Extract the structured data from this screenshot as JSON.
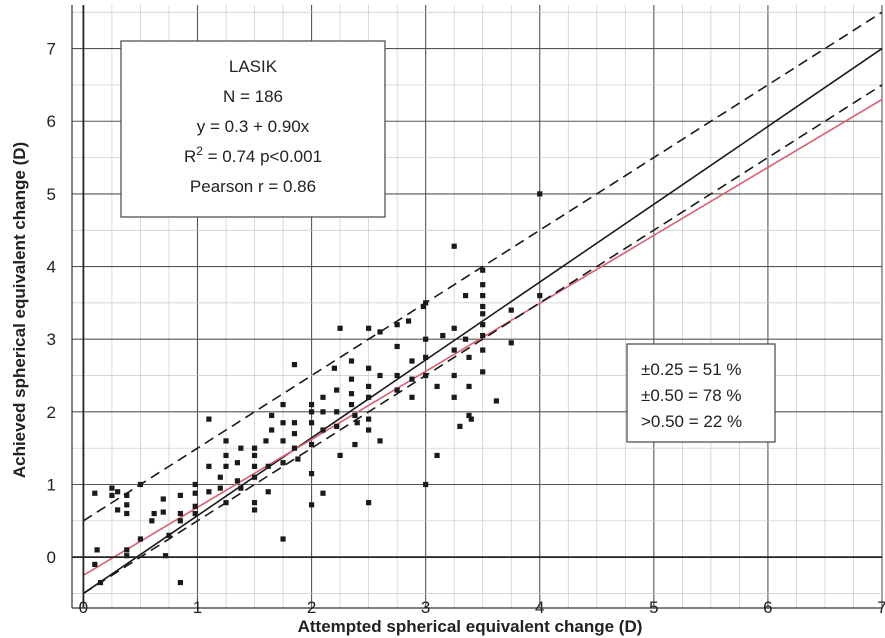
{
  "chart_data": {
    "type": "scatter",
    "xlabel": "Attempted spherical equivalent change (D)",
    "ylabel": "Achieved spherical equivalent change (D)",
    "xlim": [
      -0.1,
      7
    ],
    "ylim": [
      -0.7,
      7.6
    ],
    "x_ticks": [
      "0",
      "1",
      "2",
      "3",
      "4",
      "5",
      "6",
      "7"
    ],
    "y_ticks": [
      "0",
      "1",
      "2",
      "3",
      "4",
      "5",
      "6",
      "7"
    ],
    "grid": true,
    "stats_box": {
      "title": "LASIK",
      "n": "N = 186",
      "equation": "y = 0.3 + 0.90x",
      "r2_prefix": "R",
      "r2_sup": "2",
      "r2_suffix": " = 0.74 p<0.001",
      "pearson": "Pearson r = 0.86"
    },
    "accuracy_box": {
      "line1": "±0.25 = 51 %",
      "line2": "±0.50 = 78 %",
      "line3": ">0.50 = 22 %"
    },
    "lines": [
      {
        "style": "solid",
        "color": "#1a1a1a",
        "x": [
          0,
          7
        ],
        "y": [
          -0.5,
          7
        ]
      },
      {
        "style": "solid",
        "color": "#d9606f",
        "x": [
          0,
          7
        ],
        "y": [
          -0.25,
          6.3
        ]
      },
      {
        "style": "dashed",
        "color": "#1a1a1a",
        "x": [
          0,
          7
        ],
        "y": [
          0.5,
          7.5
        ]
      },
      {
        "style": "dashed",
        "color": "#1a1a1a",
        "x": [
          0,
          7
        ],
        "y": [
          -0.5,
          6.5
        ]
      }
    ],
    "points": [
      [
        0.1,
        0.88
      ],
      [
        0.12,
        0.1
      ],
      [
        0.1,
        -0.1
      ],
      [
        0.15,
        -0.35
      ],
      [
        0.25,
        0.95
      ],
      [
        0.25,
        0.85
      ],
      [
        0.3,
        0.65
      ],
      [
        0.3,
        0.9
      ],
      [
        0.38,
        0.85
      ],
      [
        0.38,
        0.72
      ],
      [
        0.38,
        0.6
      ],
      [
        0.38,
        0.1
      ],
      [
        0.38,
        0.02
      ],
      [
        0.5,
        1.0
      ],
      [
        0.5,
        0.25
      ],
      [
        0.6,
        0.5
      ],
      [
        0.62,
        0.6
      ],
      [
        0.7,
        0.8
      ],
      [
        0.7,
        0.62
      ],
      [
        0.72,
        0.02
      ],
      [
        0.75,
        0.3
      ],
      [
        0.85,
        0.85
      ],
      [
        0.85,
        0.6
      ],
      [
        0.85,
        0.5
      ],
      [
        0.85,
        -0.35
      ],
      [
        0.98,
        0.88
      ],
      [
        0.98,
        0.7
      ],
      [
        0.98,
        0.6
      ],
      [
        0.98,
        1.0
      ],
      [
        1.1,
        1.9
      ],
      [
        1.1,
        1.25
      ],
      [
        1.1,
        0.9
      ],
      [
        1.2,
        1.1
      ],
      [
        1.2,
        0.95
      ],
      [
        1.25,
        1.6
      ],
      [
        1.25,
        1.4
      ],
      [
        1.25,
        1.25
      ],
      [
        1.25,
        0.75
      ],
      [
        1.35,
        1.3
      ],
      [
        1.35,
        1.05
      ],
      [
        1.38,
        1.5
      ],
      [
        1.38,
        0.95
      ],
      [
        1.5,
        1.5
      ],
      [
        1.5,
        1.4
      ],
      [
        1.5,
        1.25
      ],
      [
        1.5,
        1.1
      ],
      [
        1.5,
        0.75
      ],
      [
        1.5,
        0.65
      ],
      [
        1.6,
        1.6
      ],
      [
        1.62,
        1.25
      ],
      [
        1.62,
        0.9
      ],
      [
        1.65,
        1.95
      ],
      [
        1.65,
        1.75
      ],
      [
        1.75,
        2.1
      ],
      [
        1.75,
        1.85
      ],
      [
        1.75,
        1.6
      ],
      [
        1.75,
        1.3
      ],
      [
        1.75,
        0.25
      ],
      [
        1.85,
        2.65
      ],
      [
        1.85,
        1.85
      ],
      [
        1.85,
        1.7
      ],
      [
        1.85,
        1.5
      ],
      [
        1.88,
        1.35
      ],
      [
        2.0,
        2.1
      ],
      [
        2.0,
        2.0
      ],
      [
        2.0,
        1.85
      ],
      [
        2.0,
        1.55
      ],
      [
        2.0,
        1.15
      ],
      [
        2.0,
        0.72
      ],
      [
        2.1,
        2.2
      ],
      [
        2.1,
        2.0
      ],
      [
        2.1,
        1.75
      ],
      [
        2.1,
        0.88
      ],
      [
        2.2,
        2.6
      ],
      [
        2.22,
        2.3
      ],
      [
        2.22,
        2.0
      ],
      [
        2.22,
        1.8
      ],
      [
        2.25,
        3.15
      ],
      [
        2.25,
        1.4
      ],
      [
        2.35,
        2.7
      ],
      [
        2.35,
        2.45
      ],
      [
        2.35,
        2.25
      ],
      [
        2.35,
        2.1
      ],
      [
        2.38,
        1.95
      ],
      [
        2.38,
        1.55
      ],
      [
        2.4,
        1.85
      ],
      [
        2.5,
        3.15
      ],
      [
        2.5,
        2.6
      ],
      [
        2.5,
        2.35
      ],
      [
        2.5,
        2.2
      ],
      [
        2.5,
        1.9
      ],
      [
        2.5,
        1.75
      ],
      [
        2.5,
        0.75
      ],
      [
        2.6,
        3.1
      ],
      [
        2.6,
        2.5
      ],
      [
        2.6,
        1.6
      ],
      [
        2.75,
        3.2
      ],
      [
        2.75,
        2.9
      ],
      [
        2.75,
        2.5
      ],
      [
        2.75,
        2.3
      ],
      [
        2.85,
        3.25
      ],
      [
        2.88,
        2.7
      ],
      [
        2.88,
        2.45
      ],
      [
        2.88,
        2.2
      ],
      [
        2.98,
        3.45
      ],
      [
        3.0,
        3.5
      ],
      [
        3.0,
        3.0
      ],
      [
        3.0,
        2.75
      ],
      [
        3.0,
        2.5
      ],
      [
        3.0,
        1.0
      ],
      [
        3.1,
        2.35
      ],
      [
        3.1,
        1.4
      ],
      [
        3.15,
        3.05
      ],
      [
        3.25,
        4.28
      ],
      [
        3.25,
        3.15
      ],
      [
        3.25,
        2.85
      ],
      [
        3.25,
        2.5
      ],
      [
        3.25,
        2.2
      ],
      [
        3.3,
        1.8
      ],
      [
        3.35,
        3.6
      ],
      [
        3.35,
        3.0
      ],
      [
        3.38,
        2.75
      ],
      [
        3.38,
        2.35
      ],
      [
        3.38,
        1.95
      ],
      [
        3.4,
        1.9
      ],
      [
        3.5,
        3.95
      ],
      [
        3.5,
        3.75
      ],
      [
        3.5,
        3.6
      ],
      [
        3.5,
        3.45
      ],
      [
        3.5,
        3.35
      ],
      [
        3.5,
        3.2
      ],
      [
        3.5,
        3.05
      ],
      [
        3.5,
        2.85
      ],
      [
        3.5,
        2.55
      ],
      [
        3.62,
        2.15
      ],
      [
        3.75,
        2.95
      ],
      [
        3.75,
        3.4
      ],
      [
        4.0,
        5.0
      ],
      [
        4.0,
        3.6
      ]
    ]
  }
}
